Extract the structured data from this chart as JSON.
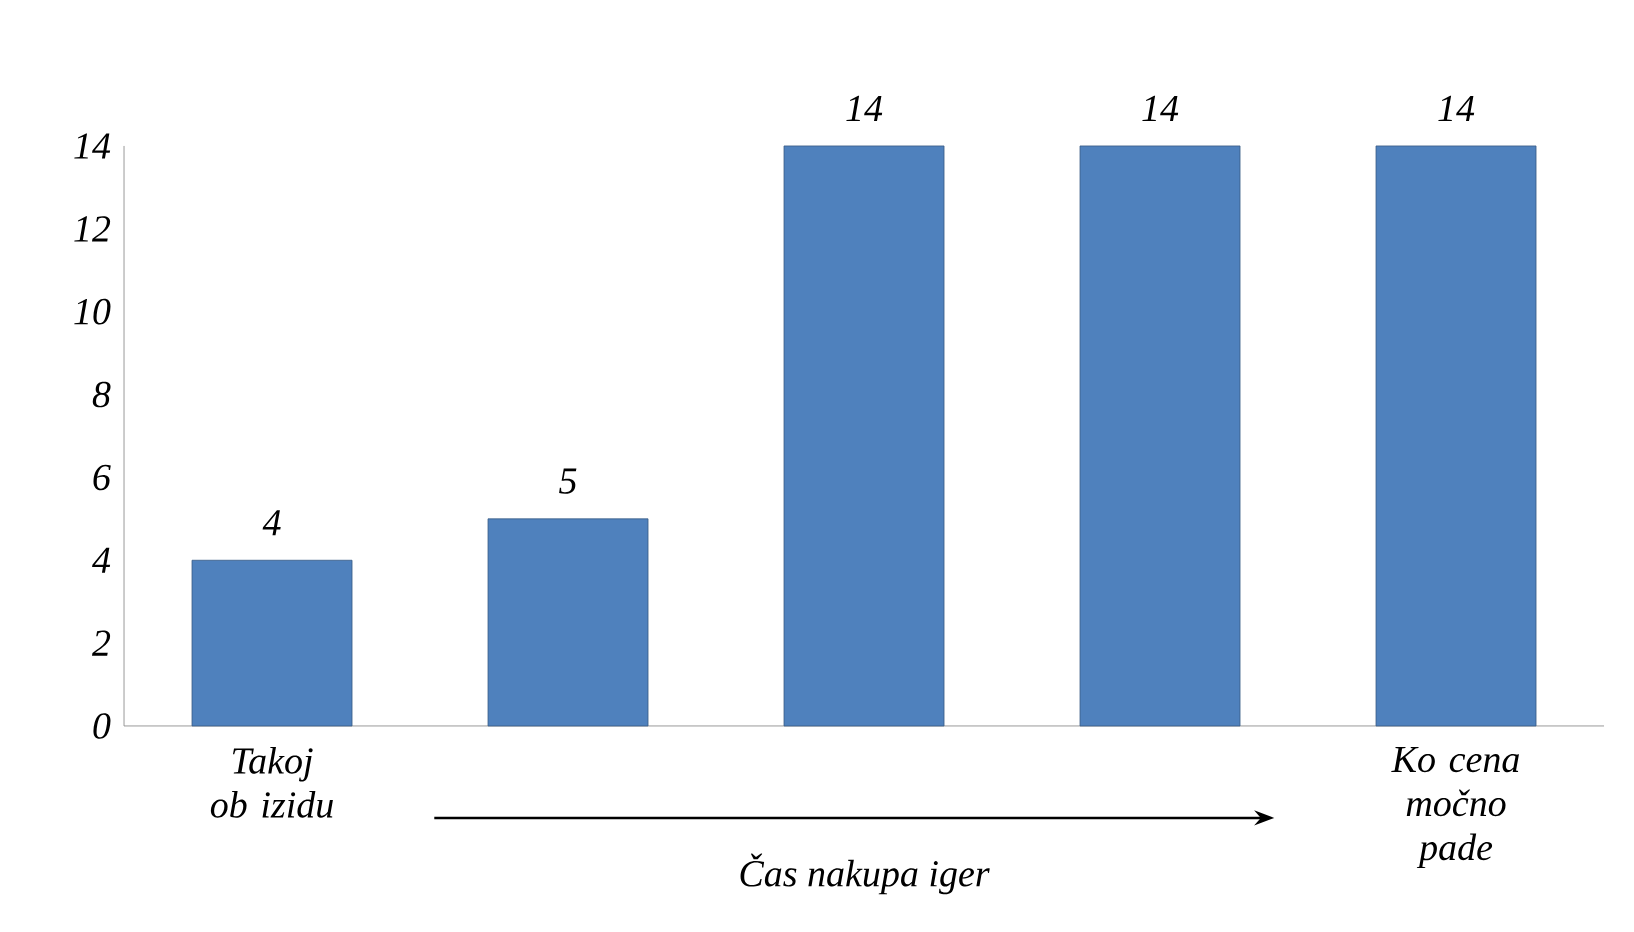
{
  "chart_data": {
    "type": "bar",
    "categories": [
      "Takoj ob izidu",
      null,
      null,
      null,
      "Ko cena močno pade"
    ],
    "values": [
      4,
      5,
      14,
      14,
      14
    ],
    "color": "#4f81bd",
    "xlabel": "Čas nakupa iger",
    "ylim": [
      0,
      14
    ],
    "yticks": [
      0,
      2,
      4,
      6,
      8,
      10,
      12,
      14
    ],
    "data_labels": true
  }
}
